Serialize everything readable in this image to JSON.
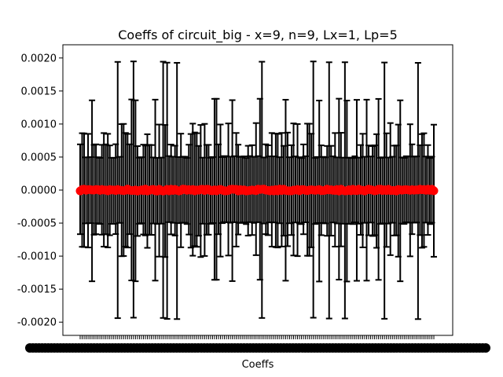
{
  "chart_data": {
    "type": "scatter",
    "title": "Coeffs of circuit_big - x=9, n=9, Lx=1, Lp=5",
    "xlabel": "Coeffs",
    "ylabel": "",
    "ylim": [
      -0.0022,
      0.0022
    ],
    "y_ticks": [
      "0.0020",
      "0.0015",
      "0.0010",
      "0.0005",
      "0.0000",
      "-0.0005",
      "-0.0010",
      "-0.0015",
      "-0.0020"
    ],
    "y_tick_values": [
      0.002,
      0.0015,
      0.001,
      0.0005,
      0.0,
      -0.0005,
      -0.001,
      -0.0015,
      -0.002
    ],
    "x_tick_labels_legible": false,
    "grid": false,
    "legend": "none",
    "series": [
      {
        "marker": "o",
        "values_approx": "all coefficients ≈ 0.0000",
        "error_bars_approx": "symmetric, mostly ±0.0005 to ±0.0010, a few ±0.0014, up to ±0.0020"
      }
    ],
    "colors": {
      "points": "#ff0000",
      "error_bars": "#000000",
      "axes": "#000000"
    }
  }
}
